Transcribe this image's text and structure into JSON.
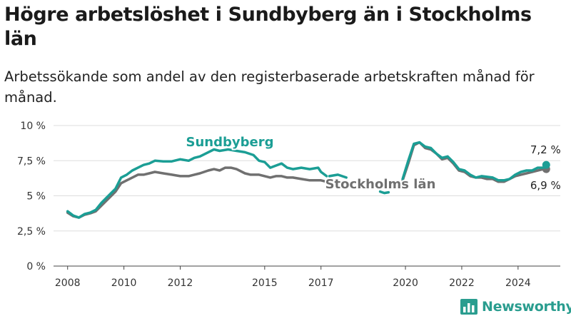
{
  "title": "Högre arbetslöshet i Sundbyberg än i Stockholms län",
  "subtitle": "Arbetssökande som andel av den registerbaserade arbetskraften månad för månad.",
  "logo": {
    "text": "Newsworthy"
  },
  "colors": {
    "sundbyberg": "#1b9e95",
    "stockholm": "#707070",
    "grid": "#dddddd",
    "axis": "#444444"
  },
  "chart_data": {
    "type": "line",
    "x_unit": "year",
    "xlim": [
      2007.5,
      2025.5
    ],
    "ylim": [
      0,
      10
    ],
    "yticks": [
      0,
      2.5,
      5,
      7.5,
      10
    ],
    "ytick_labels": [
      "0 %",
      "2,5 %",
      "5 %",
      "7,5 %",
      "10 %"
    ],
    "xticks": [
      2008,
      2010,
      2012,
      2015,
      2017,
      2020,
      2022,
      2024
    ],
    "xtick_labels": [
      "2008",
      "2010",
      "2012",
      "2015",
      "2017",
      "2020",
      "2022",
      "2024"
    ],
    "grid": true,
    "series": [
      {
        "name": "Sundbyberg",
        "color": "#1b9e95",
        "last_value_label": "7,2 %",
        "segments": [
          [
            [
              2008.0,
              3.9
            ],
            [
              2008.2,
              3.6
            ],
            [
              2008.4,
              3.45
            ],
            [
              2008.6,
              3.7
            ],
            [
              2008.8,
              3.8
            ],
            [
              2009.0,
              4.0
            ],
            [
              2009.2,
              4.5
            ],
            [
              2009.5,
              5.1
            ],
            [
              2009.7,
              5.5
            ],
            [
              2009.9,
              6.3
            ],
            [
              2010.1,
              6.5
            ],
            [
              2010.3,
              6.8
            ],
            [
              2010.5,
              7.0
            ],
            [
              2010.7,
              7.2
            ],
            [
              2010.9,
              7.3
            ],
            [
              2011.1,
              7.5
            ],
            [
              2011.4,
              7.45
            ],
            [
              2011.7,
              7.45
            ],
            [
              2012.0,
              7.6
            ],
            [
              2012.3,
              7.5
            ],
            [
              2012.5,
              7.7
            ],
            [
              2012.7,
              7.8
            ],
            [
              2013.0,
              8.1
            ],
            [
              2013.2,
              8.3
            ],
            [
              2013.4,
              8.2
            ],
            [
              2013.7,
              8.3
            ],
            [
              2014.0,
              8.2
            ],
            [
              2014.3,
              8.1
            ],
            [
              2014.6,
              7.9
            ],
            [
              2014.8,
              7.5
            ],
            [
              2015.0,
              7.4
            ],
            [
              2015.2,
              7.0
            ],
            [
              2015.4,
              7.15
            ],
            [
              2015.6,
              7.3
            ],
            [
              2015.8,
              7.0
            ],
            [
              2016.0,
              6.9
            ],
            [
              2016.3,
              7.0
            ],
            [
              2016.6,
              6.9
            ],
            [
              2016.9,
              7.0
            ],
            [
              2017.0,
              6.7
            ],
            [
              2017.2,
              6.4
            ]
          ],
          [
            [
              2017.3,
              6.4
            ],
            [
              2017.6,
              6.5
            ],
            [
              2017.9,
              6.3
            ]
          ],
          [
            [
              2019.1,
              5.3
            ],
            [
              2019.25,
              5.2
            ],
            [
              2019.4,
              5.25
            ]
          ],
          [
            [
              2019.9,
              6.2
            ],
            [
              2020.1,
              7.5
            ],
            [
              2020.3,
              8.7
            ],
            [
              2020.5,
              8.8
            ],
            [
              2020.7,
              8.5
            ],
            [
              2020.9,
              8.4
            ],
            [
              2021.1,
              8.0
            ],
            [
              2021.3,
              7.7
            ],
            [
              2021.5,
              7.8
            ],
            [
              2021.7,
              7.4
            ],
            [
              2021.9,
              6.9
            ],
            [
              2022.1,
              6.8
            ],
            [
              2022.3,
              6.5
            ],
            [
              2022.5,
              6.3
            ],
            [
              2022.7,
              6.4
            ],
            [
              2022.9,
              6.35
            ],
            [
              2023.1,
              6.3
            ],
            [
              2023.3,
              6.1
            ],
            [
              2023.5,
              6.1
            ],
            [
              2023.7,
              6.2
            ],
            [
              2023.9,
              6.5
            ],
            [
              2024.1,
              6.7
            ],
            [
              2024.3,
              6.8
            ],
            [
              2024.5,
              6.8
            ],
            [
              2024.7,
              7.0
            ],
            [
              2024.9,
              7.0
            ],
            [
              2025.0,
              7.2
            ]
          ]
        ]
      },
      {
        "name": "Stockholms län",
        "color": "#707070",
        "last_value_label": "6,9 %",
        "segments": [
          [
            [
              2008.0,
              3.8
            ],
            [
              2008.2,
              3.55
            ],
            [
              2008.4,
              3.45
            ],
            [
              2008.6,
              3.65
            ],
            [
              2008.8,
              3.75
            ],
            [
              2009.0,
              3.9
            ],
            [
              2009.2,
              4.3
            ],
            [
              2009.5,
              4.9
            ],
            [
              2009.7,
              5.3
            ],
            [
              2009.9,
              5.9
            ],
            [
              2010.1,
              6.1
            ],
            [
              2010.3,
              6.3
            ],
            [
              2010.5,
              6.5
            ],
            [
              2010.7,
              6.5
            ],
            [
              2010.9,
              6.6
            ],
            [
              2011.1,
              6.7
            ],
            [
              2011.4,
              6.6
            ],
            [
              2011.7,
              6.5
            ],
            [
              2012.0,
              6.4
            ],
            [
              2012.3,
              6.4
            ],
            [
              2012.5,
              6.5
            ],
            [
              2012.7,
              6.6
            ],
            [
              2013.0,
              6.8
            ],
            [
              2013.2,
              6.9
            ],
            [
              2013.4,
              6.8
            ],
            [
              2013.6,
              7.0
            ],
            [
              2013.8,
              7.0
            ],
            [
              2014.0,
              6.9
            ],
            [
              2014.3,
              6.6
            ],
            [
              2014.5,
              6.5
            ],
            [
              2014.8,
              6.5
            ],
            [
              2015.0,
              6.4
            ],
            [
              2015.2,
              6.3
            ],
            [
              2015.4,
              6.4
            ],
            [
              2015.6,
              6.4
            ],
            [
              2015.8,
              6.3
            ],
            [
              2016.0,
              6.3
            ],
            [
              2016.3,
              6.2
            ],
            [
              2016.6,
              6.1
            ],
            [
              2016.9,
              6.1
            ],
            [
              2017.0,
              6.1
            ],
            [
              2017.2,
              6.0
            ]
          ],
          [
            [
              2019.9,
              6.1
            ],
            [
              2020.1,
              7.3
            ],
            [
              2020.3,
              8.6
            ],
            [
              2020.5,
              8.8
            ],
            [
              2020.7,
              8.4
            ],
            [
              2020.9,
              8.3
            ],
            [
              2021.1,
              8.0
            ],
            [
              2021.3,
              7.6
            ],
            [
              2021.5,
              7.7
            ],
            [
              2021.7,
              7.3
            ],
            [
              2021.9,
              6.8
            ],
            [
              2022.1,
              6.7
            ],
            [
              2022.3,
              6.4
            ],
            [
              2022.5,
              6.3
            ],
            [
              2022.7,
              6.3
            ],
            [
              2022.9,
              6.2
            ],
            [
              2023.1,
              6.2
            ],
            [
              2023.3,
              6.0
            ],
            [
              2023.5,
              6.0
            ],
            [
              2023.7,
              6.2
            ],
            [
              2023.9,
              6.4
            ],
            [
              2024.1,
              6.5
            ],
            [
              2024.3,
              6.6
            ],
            [
              2024.5,
              6.7
            ],
            [
              2024.7,
              6.8
            ],
            [
              2024.9,
              6.9
            ],
            [
              2025.0,
              6.9
            ]
          ]
        ]
      }
    ]
  }
}
